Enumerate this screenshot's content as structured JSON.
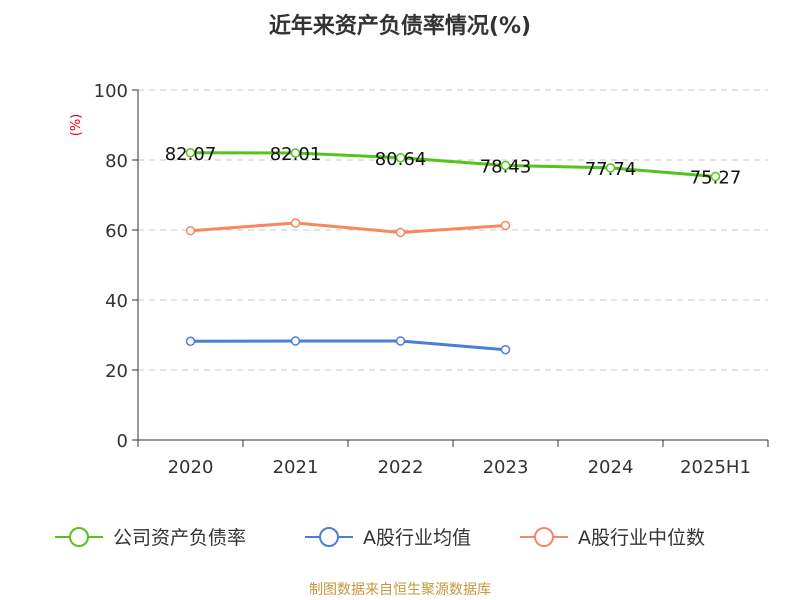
{
  "colors": {
    "company": "#52c41a",
    "industry_avg": "#4a7fd9",
    "industry_median": "#f5885e",
    "unit": "#e8000b",
    "source": "#c8963e",
    "grid": "#c8c8c8",
    "axis": "#333333"
  },
  "chart_data": {
    "type": "line",
    "title": "近年来资产负债率情况(%)",
    "ylabel": "(%)",
    "xlabel": "",
    "categories": [
      "2020",
      "2021",
      "2022",
      "2023",
      "2024",
      "2025H1"
    ],
    "ylim": [
      0,
      100
    ],
    "yticks": [
      0,
      20,
      40,
      60,
      80,
      100
    ],
    "grid": "horizontal dashed",
    "legend_position": "bottom",
    "series": [
      {
        "name": "公司资产负债率",
        "color": "#52c41a",
        "values": [
          82.07,
          82.01,
          80.64,
          78.43,
          77.74,
          75.27
        ],
        "labels": [
          "82.07",
          "82.01",
          "80.64",
          "78.43",
          "77.74",
          "75.27"
        ]
      },
      {
        "name": "A股行业均值",
        "color": "#4a7fd9",
        "values": [
          28.2,
          28.3,
          28.3,
          25.8,
          null,
          null
        ]
      },
      {
        "name": "A股行业中位数",
        "color": "#f5885e",
        "values": [
          59.8,
          62.0,
          59.3,
          61.3,
          null,
          null
        ]
      }
    ],
    "source": "制图数据来自恒生聚源数据库"
  }
}
